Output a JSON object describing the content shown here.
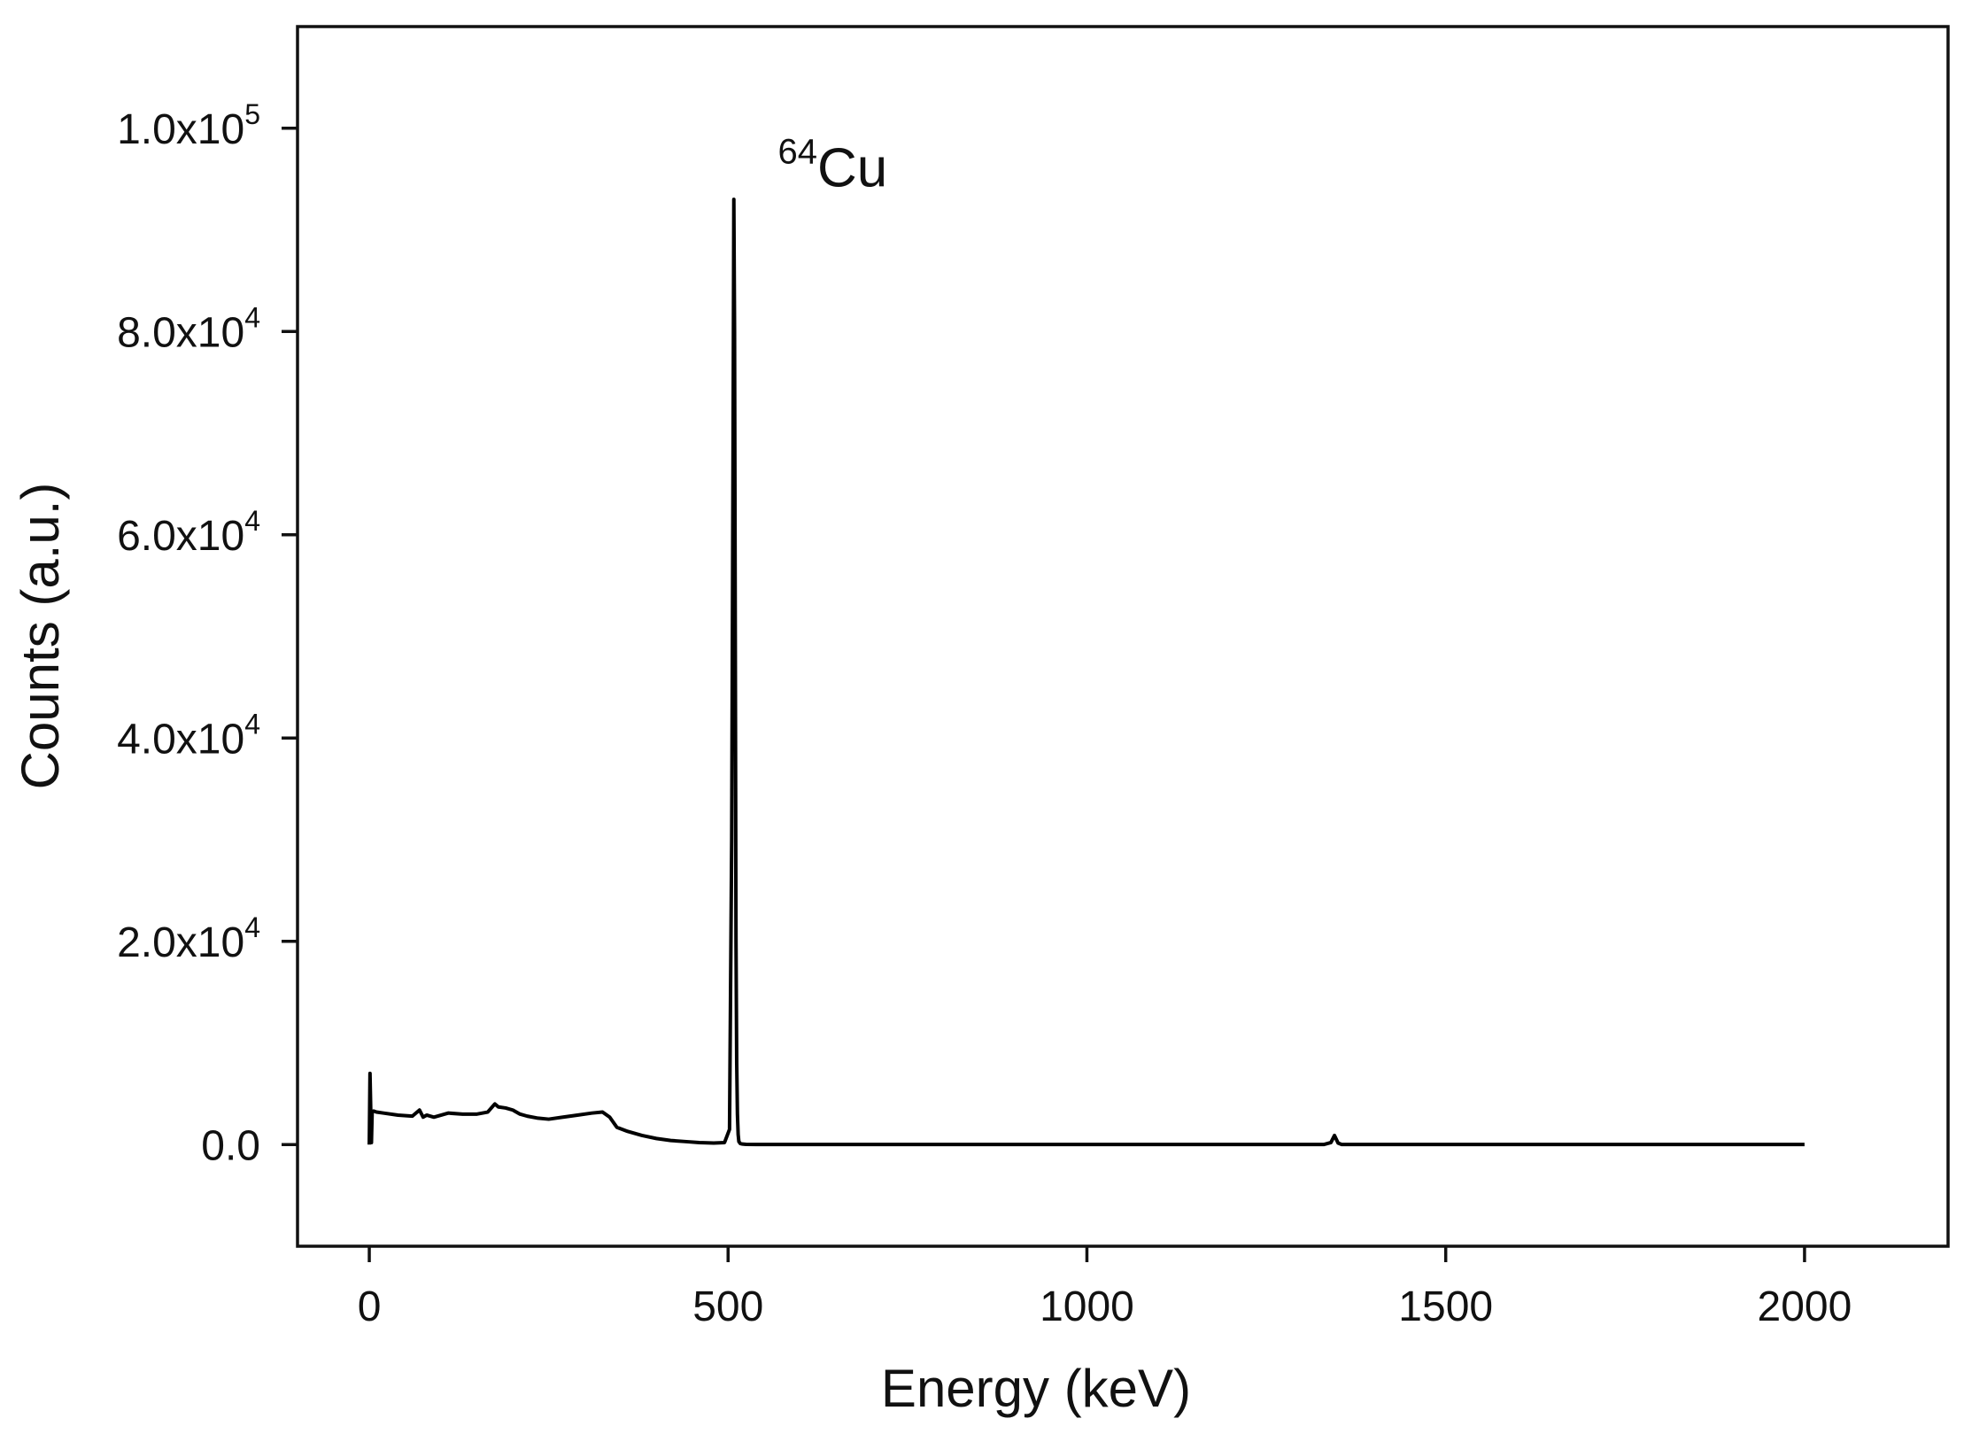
{
  "chart_data": {
    "type": "line",
    "title": "",
    "xlabel": "Energy (keV)",
    "ylabel": "Counts (a.u.)",
    "xlim": [
      -100,
      2200
    ],
    "ylim": [
      -10000,
      110000
    ],
    "x_ticks": [
      0,
      500,
      1000,
      1500,
      2000
    ],
    "x_tick_labels": [
      "0",
      "500",
      "1000",
      "1500",
      "2000"
    ],
    "y_ticks": [
      0,
      20000,
      40000,
      60000,
      80000,
      100000
    ],
    "y_tick_labels": [
      {
        "base": "0.0",
        "exp": ""
      },
      {
        "base": "2.0x10",
        "exp": "4"
      },
      {
        "base": "4.0x10",
        "exp": "4"
      },
      {
        "base": "6.0x10",
        "exp": "4"
      },
      {
        "base": "8.0x10",
        "exp": "4"
      },
      {
        "base": "1.0x10",
        "exp": "5"
      }
    ],
    "grid": false,
    "line_color": "#000000",
    "series": [
      {
        "x": [
          0,
          1,
          2,
          3,
          4,
          6,
          10,
          20,
          40,
          60,
          70,
          75,
          80,
          90,
          110,
          130,
          150,
          165,
          175,
          180,
          190,
          200,
          210,
          220,
          235,
          250,
          270,
          290,
          310,
          325,
          335,
          345,
          360,
          380,
          400,
          420,
          440,
          460,
          480,
          495,
          502,
          505,
          507,
          508,
          509,
          510,
          511,
          512,
          513,
          514,
          515,
          517,
          520,
          525,
          540,
          600,
          800,
          1000,
          1200,
          1330,
          1340,
          1345,
          1350,
          1355,
          1360,
          1400,
          1600,
          1800,
          2000
        ],
        "y": [
          0,
          7000,
          3500,
          200,
          3200,
          3300,
          3200,
          3100,
          2900,
          2800,
          3400,
          2700,
          2900,
          2700,
          3100,
          3000,
          3000,
          3200,
          4000,
          3700,
          3600,
          3400,
          3000,
          2800,
          2600,
          2500,
          2700,
          2900,
          3100,
          3200,
          2700,
          1700,
          1300,
          900,
          600,
          400,
          300,
          200,
          150,
          200,
          1500,
          30000,
          70000,
          93000,
          80000,
          50000,
          20000,
          8000,
          3000,
          1000,
          300,
          100,
          50,
          20,
          10,
          10,
          10,
          10,
          10,
          10,
          200,
          900,
          150,
          10,
          10,
          10,
          10,
          10,
          10
        ]
      }
    ],
    "annotations": [
      {
        "text": "Cu",
        "superscript": "64",
        "x": 500,
        "y": 96000
      }
    ]
  }
}
